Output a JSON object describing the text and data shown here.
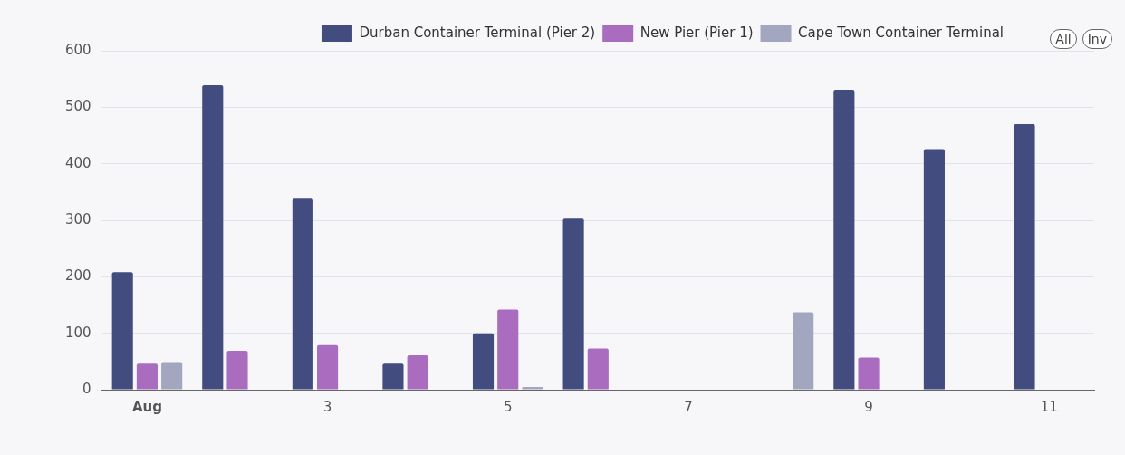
{
  "chart_data": {
    "type": "bar",
    "categories": [
      "Aug",
      null,
      "3",
      null,
      "5",
      null,
      "7",
      null,
      "9",
      null,
      "11"
    ],
    "series": [
      {
        "name": "Durban Container Terminal (Pier 2)",
        "color": "#434c7e",
        "values": [
          208,
          539,
          338,
          46,
          100,
          303,
          null,
          null,
          531,
          426,
          470
        ]
      },
      {
        "name": "New Pier (Pier 1)",
        "color": "#a96cbf",
        "values": [
          46,
          69,
          79,
          61,
          142,
          73,
          null,
          null,
          57,
          null,
          null
        ]
      },
      {
        "name": "Cape Town Container Terminal",
        "color": "#a3a6bf",
        "values": [
          49,
          null,
          null,
          null,
          5,
          null,
          null,
          137,
          null,
          null,
          null
        ]
      }
    ],
    "ylim": [
      0,
      600
    ],
    "yticks": [
      0,
      100,
      200,
      300,
      400,
      500,
      600
    ],
    "grid": "y",
    "legend": "top right",
    "annotations": [
      "All",
      "Inv"
    ]
  }
}
